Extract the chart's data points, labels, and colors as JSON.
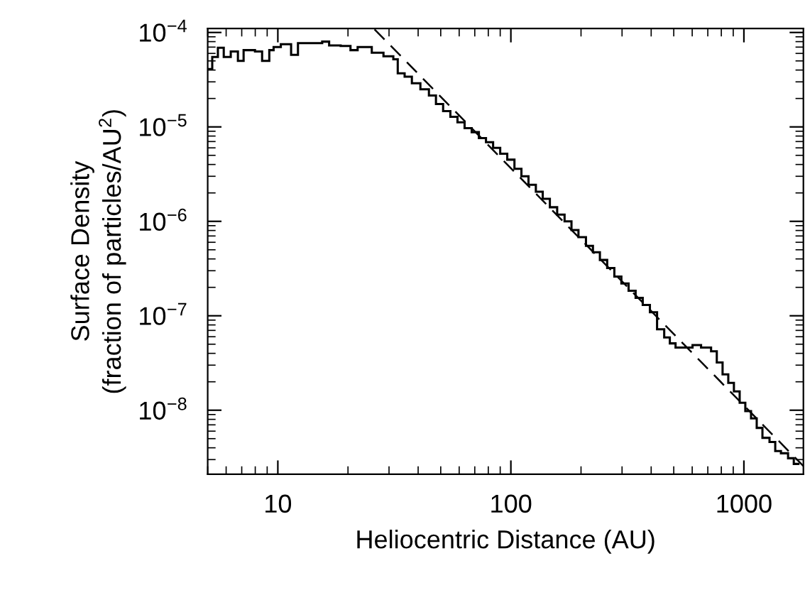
{
  "chart_data": {
    "type": "histogram",
    "xlabel": "Heliocentric Distance (AU)",
    "ylabel": "Surface Density\n(fraction of particles/AU$^{2}$)",
    "log": "xy",
    "grid": false,
    "legend": false,
    "xlim": [
      5,
      1800
    ],
    "ylim": [
      2.1e-09,
      0.00011
    ],
    "xticks": [
      10,
      100,
      1000
    ],
    "yticks": [
      {
        "value": 1e-08,
        "label": "10$^{−8}$"
      },
      {
        "value": 1e-07,
        "label": "10$^{−7}$"
      },
      {
        "value": 1e-06,
        "label": "10$^{−6}$"
      },
      {
        "value": 1e-05,
        "label": "10$^{−5}$"
      },
      {
        "value": 0.0001,
        "label": "10$^{−4}$"
      }
    ],
    "series": [
      {
        "color": "#000000",
        "bins": [
          5.0,
          5.23,
          5.53,
          5.86,
          6.28,
          6.74,
          7.13,
          7.98,
          8.56,
          9.19,
          9.59,
          10.3,
          11.4,
          12.2,
          15.5,
          16.6,
          18.6,
          20.5,
          22.0,
          23.6,
          25.3,
          28.4,
          31.3,
          32.7,
          35.0,
          37.6,
          40.9,
          44.5,
          47.7,
          51.2,
          55.0,
          59.0,
          63.3,
          67.9,
          72.9,
          78.2,
          83.9,
          90.0,
          96.5,
          103.6,
          111,
          119,
          128,
          137,
          147,
          158,
          170,
          182,
          195,
          210,
          225,
          241,
          259,
          278,
          298,
          320,
          343,
          368,
          395,
          424,
          455,
          481,
          509,
          602,
          655,
          723,
          765,
          810,
          857,
          906,
          959,
          1014,
          1073,
          1135,
          1201,
          1288,
          1363,
          1442,
          1547,
          1637,
          1732
        ],
        "values": [
          4.1e-05,
          5.5e-05,
          6.9e-05,
          5.5e-05,
          6.3e-05,
          5e-05,
          6.5e-05,
          6.3e-05,
          5e-05,
          6.5e-05,
          7e-05,
          7.5e-05,
          5.8e-05,
          7.7e-05,
          8e-05,
          7.3e-05,
          7.2e-05,
          6.5e-05,
          7e-05,
          7e-05,
          6.1e-05,
          5.6e-05,
          5.2e-05,
          3.7e-05,
          3.4e-05,
          2.9e-05,
          2.5e-05,
          2.15e-05,
          1.75e-05,
          1.47e-05,
          1.28e-05,
          1.12e-05,
          9.7e-06,
          8.8e-06,
          7.6e-06,
          6.9e-06,
          6e-06,
          5.2e-06,
          4.5e-06,
          3.6e-06,
          3e-06,
          2.44e-06,
          2.06e-06,
          1.73e-06,
          1.41e-06,
          1.18e-06,
          1e-06,
          8.1e-07,
          6.8e-07,
          5.5e-07,
          4.7e-07,
          3.9e-07,
          3.2e-07,
          2.6e-07,
          2.2e-07,
          1.84e-07,
          1.55e-07,
          1.3e-07,
          1.09e-07,
          7.2e-08,
          5.9e-08,
          5.1e-08,
          4.6e-08,
          4.9e-08,
          4.6e-08,
          4.2e-08,
          3.2e-08,
          2.4e-08,
          1.95e-08,
          1.58e-08,
          1.2e-08,
          9.8e-09,
          8.2e-09,
          6.5e-09,
          5.1e-09,
          4.6e-09,
          3.7e-09,
          3.5e-09,
          3.1e-09,
          2.7e-09
        ]
      },
      {
        "type": "line",
        "color": "#000000",
        "line_style": "dashed",
        "x": [
          26,
          1800
        ],
        "values": [
          0.000108,
          2.56e-09
        ]
      }
    ]
  }
}
